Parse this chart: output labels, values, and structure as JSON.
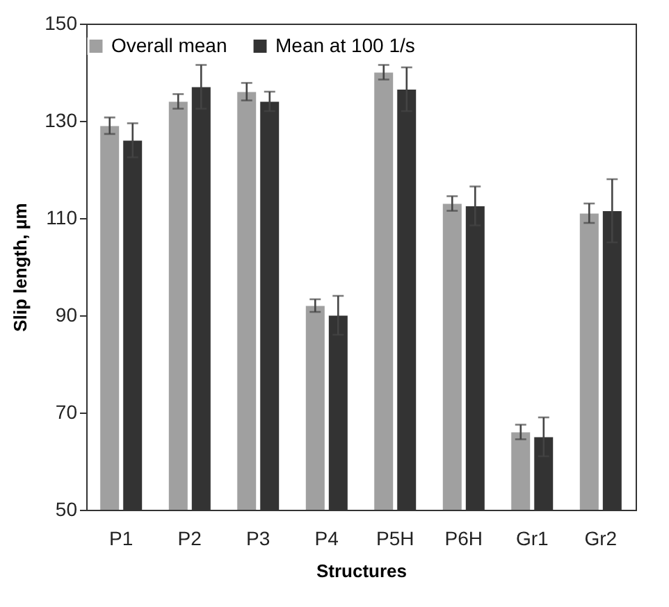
{
  "chart_data": {
    "type": "bar",
    "xlabel": "Structures",
    "ylabel": "Slip length, µm",
    "categories": [
      "P1",
      "P2",
      "P3",
      "P4",
      "P5H",
      "P6H",
      "Gr1",
      "Gr2"
    ],
    "series": [
      {
        "name": "Overall mean",
        "color": "#a0a0a0",
        "values": [
          129,
          134,
          136,
          92,
          140,
          113,
          66,
          111
        ],
        "errors": [
          1.7,
          1.5,
          1.8,
          1.3,
          1.5,
          1.5,
          1.5,
          2
        ]
      },
      {
        "name": "Mean at 100 1/s",
        "color": "#333333",
        "values": [
          126,
          137,
          134,
          90,
          136.5,
          112.5,
          65,
          111.5
        ],
        "errors": [
          3.5,
          4.5,
          2,
          4,
          4.5,
          4,
          4,
          6.5
        ]
      }
    ],
    "ylim": [
      50,
      150
    ],
    "yticks": [
      50,
      70,
      90,
      110,
      130,
      150
    ],
    "grid": false,
    "legend": "top"
  }
}
